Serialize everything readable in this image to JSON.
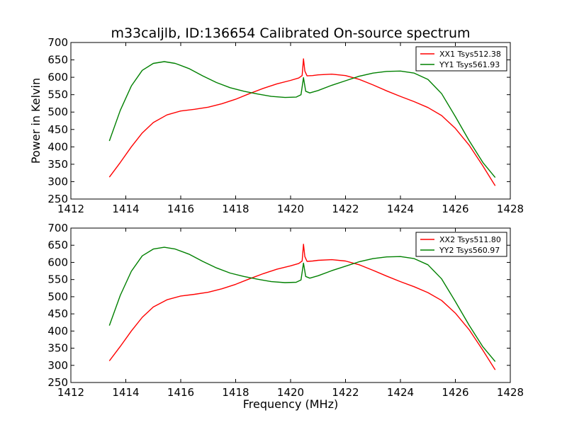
{
  "title": "m33caljlb, ID:136654 Calibrated On-source spectrum",
  "colors": {
    "xx": "#ff0000",
    "yy": "#008000"
  },
  "chart_data": [
    {
      "type": "line",
      "ylabel": "Power in Kelvin",
      "xlabel": "",
      "xlim": [
        1412,
        1428
      ],
      "ylim": [
        250,
        700
      ],
      "xticks": [
        1412,
        1414,
        1416,
        1418,
        1420,
        1422,
        1424,
        1426,
        1428
      ],
      "yticks": [
        250,
        300,
        350,
        400,
        450,
        500,
        550,
        600,
        650,
        700
      ],
      "legend_position": "top-right",
      "series": [
        {
          "name": "XX1 Tsys512.38",
          "color": "#ff0000",
          "x": [
            1413.4,
            1413.8,
            1414.2,
            1414.6,
            1415.0,
            1415.5,
            1416.0,
            1416.5,
            1417.0,
            1417.5,
            1418.0,
            1418.5,
            1419.0,
            1419.5,
            1420.0,
            1420.3,
            1420.42,
            1420.47,
            1420.52,
            1420.6,
            1420.8,
            1421.0,
            1421.5,
            1422.0,
            1422.5,
            1423.0,
            1423.5,
            1424.0,
            1424.5,
            1425.0,
            1425.5,
            1426.0,
            1426.5,
            1427.0,
            1427.45
          ],
          "y": [
            313,
            355,
            400,
            440,
            470,
            492,
            503,
            508,
            514,
            524,
            537,
            553,
            568,
            581,
            591,
            598,
            605,
            653,
            618,
            604,
            605,
            607,
            609,
            605,
            594,
            578,
            561,
            545,
            530,
            513,
            490,
            453,
            405,
            345,
            288
          ]
        },
        {
          "name": "YY1 Tsys561.93",
          "color": "#008000",
          "x": [
            1413.4,
            1413.8,
            1414.2,
            1414.6,
            1415.0,
            1415.4,
            1415.8,
            1416.3,
            1416.8,
            1417.3,
            1417.8,
            1418.3,
            1418.8,
            1419.3,
            1419.8,
            1420.2,
            1420.38,
            1420.47,
            1420.55,
            1420.7,
            1421.0,
            1421.5,
            1422.0,
            1422.5,
            1423.0,
            1423.5,
            1424.0,
            1424.5,
            1425.0,
            1425.5,
            1426.0,
            1426.5,
            1427.0,
            1427.45
          ],
          "y": [
            417,
            505,
            575,
            620,
            640,
            645,
            640,
            625,
            604,
            585,
            570,
            560,
            552,
            545,
            542,
            543,
            550,
            599,
            560,
            555,
            562,
            577,
            590,
            603,
            612,
            617,
            618,
            612,
            594,
            553,
            487,
            418,
            355,
            312
          ]
        }
      ]
    },
    {
      "type": "line",
      "ylabel": "",
      "xlabel": "Frequency (MHz)",
      "xlim": [
        1412,
        1428
      ],
      "ylim": [
        250,
        700
      ],
      "xticks": [
        1412,
        1414,
        1416,
        1418,
        1420,
        1422,
        1424,
        1426,
        1428
      ],
      "yticks": [
        250,
        300,
        350,
        400,
        450,
        500,
        550,
        600,
        650,
        700
      ],
      "legend_position": "top-right",
      "series": [
        {
          "name": "XX2 Tsys511.80",
          "color": "#ff0000",
          "x": [
            1413.4,
            1413.8,
            1414.2,
            1414.6,
            1415.0,
            1415.5,
            1416.0,
            1416.5,
            1417.0,
            1417.5,
            1418.0,
            1418.5,
            1419.0,
            1419.5,
            1420.0,
            1420.3,
            1420.42,
            1420.47,
            1420.52,
            1420.6,
            1420.8,
            1421.0,
            1421.5,
            1422.0,
            1422.5,
            1423.0,
            1423.5,
            1424.0,
            1424.5,
            1425.0,
            1425.5,
            1426.0,
            1426.5,
            1427.0,
            1427.45
          ],
          "y": [
            313,
            355,
            400,
            440,
            470,
            491,
            502,
            507,
            513,
            523,
            536,
            552,
            567,
            580,
            590,
            597,
            604,
            653,
            617,
            603,
            604,
            606,
            608,
            604,
            593,
            577,
            560,
            544,
            529,
            512,
            489,
            452,
            404,
            344,
            287
          ]
        },
        {
          "name": "YY2 Tsys560.97",
          "color": "#008000",
          "x": [
            1413.4,
            1413.8,
            1414.2,
            1414.6,
            1415.0,
            1415.4,
            1415.8,
            1416.3,
            1416.8,
            1417.3,
            1417.8,
            1418.3,
            1418.8,
            1419.3,
            1419.8,
            1420.2,
            1420.38,
            1420.47,
            1420.55,
            1420.7,
            1421.0,
            1421.5,
            1422.0,
            1422.5,
            1423.0,
            1423.5,
            1424.0,
            1424.5,
            1425.0,
            1425.5,
            1426.0,
            1426.5,
            1427.0,
            1427.45
          ],
          "y": [
            416,
            504,
            574,
            619,
            639,
            644,
            639,
            624,
            603,
            584,
            569,
            559,
            551,
            544,
            541,
            542,
            549,
            598,
            559,
            554,
            561,
            576,
            589,
            602,
            611,
            616,
            617,
            611,
            593,
            552,
            486,
            417,
            354,
            311
          ]
        }
      ]
    }
  ]
}
